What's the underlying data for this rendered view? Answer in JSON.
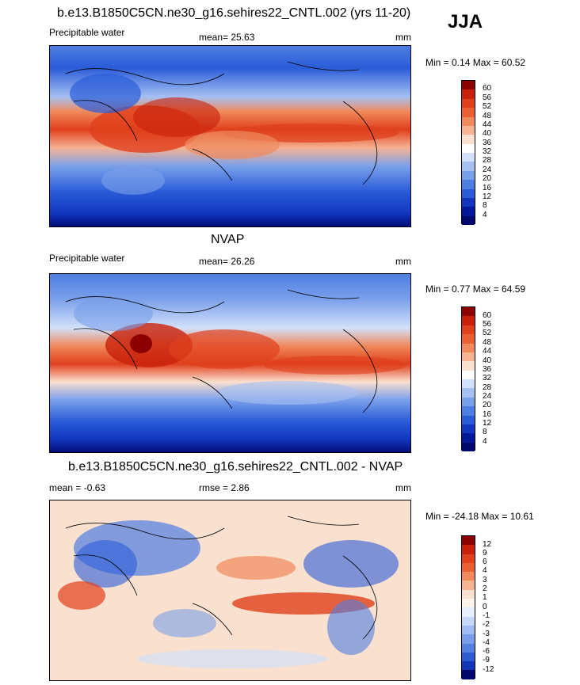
{
  "season": "JJA",
  "panels": [
    {
      "title": "b.e13.B1850C5CN.ne30_g16.sehires22_CNTL.002 (yrs 11-20)",
      "left_label": "Precipitable water",
      "mean_label": "mean=  25.63",
      "units": "mm",
      "minmax": "Min =   0.14 Max =  60.52",
      "levels": [
        "60",
        "56",
        "52",
        "48",
        "44",
        "40",
        "36",
        "32",
        "28",
        "24",
        "20",
        "16",
        "12",
        "8",
        "4"
      ]
    },
    {
      "title": "NVAP",
      "left_label": "Precipitable water",
      "mean_label": "mean=  26.26",
      "units": "mm",
      "minmax": "Min =   0.77 Max =  64.59",
      "levels": [
        "60",
        "56",
        "52",
        "48",
        "44",
        "40",
        "36",
        "32",
        "28",
        "24",
        "20",
        "16",
        "12",
        "8",
        "4"
      ]
    },
    {
      "title": "b.e13.B1850C5CN.ne30_g16.sehires22_CNTL.002 - NVAP",
      "left_label": "mean =  -0.63",
      "mean_label": "rmse =   2.86",
      "units": "mm",
      "minmax": "Min = -24.18 Max =  10.61",
      "levels": [
        "12",
        "9",
        "6",
        "4",
        "3",
        "2",
        "1",
        "0",
        "-1",
        "-2",
        "-3",
        "-4",
        "-6",
        "-9",
        "-12"
      ]
    }
  ],
  "colors": {
    "abs_scale": [
      "#8b0000",
      "#c8200a",
      "#e0401c",
      "#ea6032",
      "#f08a5c",
      "#f5b392",
      "#fae0ce",
      "#ffffff",
      "#d2e0fa",
      "#a6c0f2",
      "#7aa0ea",
      "#4e7ee2",
      "#2a5cd8",
      "#1236c0",
      "#06189a",
      "#00086e"
    ],
    "diff_scale": [
      "#8b0000",
      "#c8200a",
      "#e0401c",
      "#ea6032",
      "#f08a5c",
      "#f5b392",
      "#fae0ce",
      "#fff4ea",
      "#e8f0ff",
      "#c6d8fa",
      "#a0bcf2",
      "#7a9eea",
      "#5480e0",
      "#2e5cd0",
      "#1236b8",
      "#00086e"
    ]
  }
}
